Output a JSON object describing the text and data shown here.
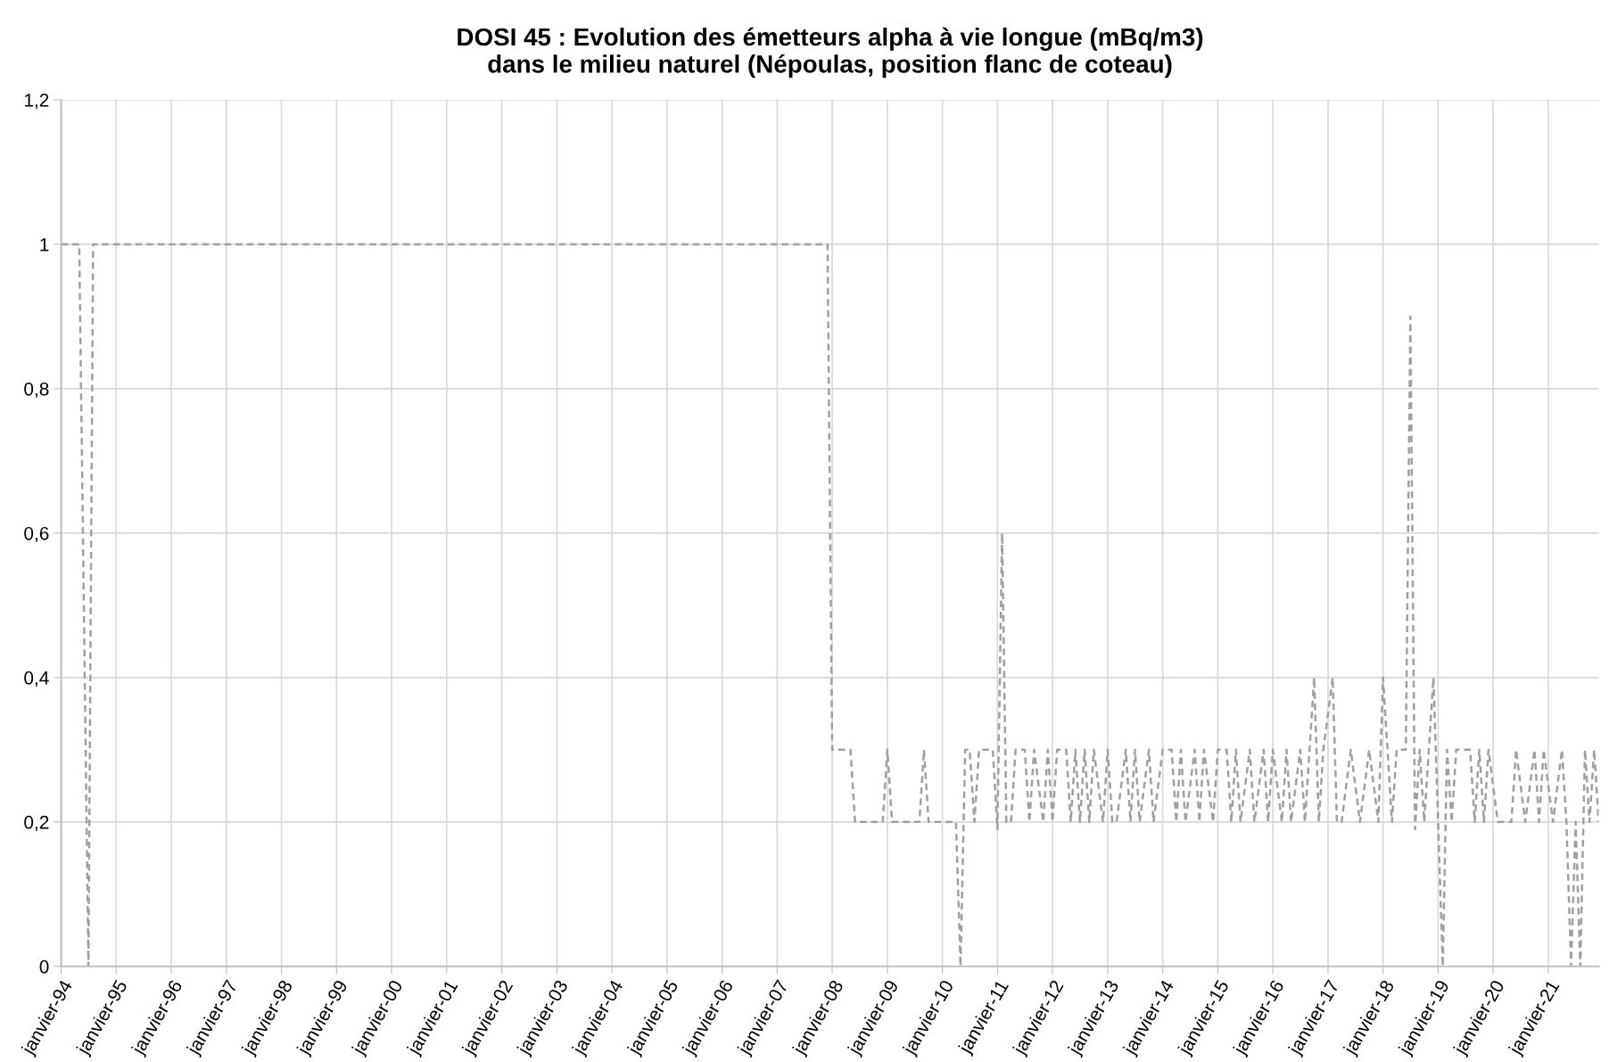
{
  "chart_data": {
    "type": "line",
    "title": "DOSI 45 : Evolution des émetteurs alpha à vie longue (mBq/m3)\ndans le milieu naturel (Népoulas, position flanc de coteau)",
    "x": [
      "1994-01",
      "1994-05",
      "1994-07",
      "1994-08",
      "2007-12",
      "2008-01",
      "2008-05",
      "2008-06",
      "2008-12",
      "2009-01",
      "2009-02",
      "2009-08",
      "2009-09",
      "2009-10",
      "2010-04",
      "2010-05",
      "2010-06",
      "2010-07",
      "2010-08",
      "2010-09",
      "2010-12",
      "2011-01",
      "2011-02",
      "2011-03",
      "2011-04",
      "2011-05",
      "2011-07",
      "2011-08",
      "2011-09",
      "2011-11",
      "2011-12",
      "2012-01",
      "2012-02",
      "2012-04",
      "2012-05",
      "2012-06",
      "2012-07",
      "2012-08",
      "2012-09",
      "2012-10",
      "2012-12",
      "2013-01",
      "2013-02",
      "2013-03",
      "2013-05",
      "2013-06",
      "2013-07",
      "2013-08",
      "2013-10",
      "2013-11",
      "2014-01",
      "2014-03",
      "2014-04",
      "2014-05",
      "2014-06",
      "2014-08",
      "2014-09",
      "2014-10",
      "2014-12",
      "2015-01",
      "2015-03",
      "2015-04",
      "2015-05",
      "2015-06",
      "2015-08",
      "2015-09",
      "2015-11",
      "2015-12",
      "2016-01",
      "2016-03",
      "2016-04",
      "2016-05",
      "2016-07",
      "2016-08",
      "2016-10",
      "2016-11",
      "2016-12",
      "2017-02",
      "2017-03",
      "2017-04",
      "2017-06",
      "2017-08",
      "2017-10",
      "2017-12",
      "2018-01",
      "2018-03",
      "2018-04",
      "2018-06",
      "2018-07",
      "2018-08",
      "2018-09",
      "2018-10",
      "2018-12",
      "2019-02",
      "2019-03",
      "2019-04",
      "2019-05",
      "2019-08",
      "2019-09",
      "2019-10",
      "2019-11",
      "2019-12",
      "2020-02",
      "2020-05",
      "2020-06",
      "2020-08",
      "2020-10",
      "2020-11",
      "2020-12",
      "2021-02",
      "2021-04",
      "2021-05",
      "2021-06",
      "2021-07",
      "2021-08",
      "2021-09",
      "2021-10",
      "2021-11",
      "2021-12"
    ],
    "series": [
      {
        "color": "#a0a0a0",
        "values": [
          1,
          1,
          0,
          1,
          1,
          0.3,
          0.3,
          0.2,
          0.2,
          0.3,
          0.2,
          0.2,
          0.3,
          0.2,
          0.2,
          0,
          0.3,
          0.3,
          0.2,
          0.3,
          0.3,
          0.19,
          0.6,
          0.2,
          0.2,
          0.3,
          0.3,
          0.2,
          0.3,
          0.2,
          0.3,
          0.2,
          0.3,
          0.3,
          0.2,
          0.3,
          0.2,
          0.3,
          0.2,
          0.3,
          0.2,
          0.3,
          0.2,
          0.2,
          0.3,
          0.2,
          0.3,
          0.2,
          0.3,
          0.2,
          0.3,
          0.3,
          0.2,
          0.3,
          0.2,
          0.3,
          0.2,
          0.3,
          0.2,
          0.3,
          0.3,
          0.2,
          0.3,
          0.2,
          0.3,
          0.2,
          0.3,
          0.2,
          0.3,
          0.2,
          0.3,
          0.2,
          0.3,
          0.2,
          0.4,
          0.2,
          0.3,
          0.4,
          0.2,
          0.2,
          0.3,
          0.2,
          0.3,
          0.2,
          0.4,
          0.2,
          0.3,
          0.3,
          0.9,
          0.19,
          0.3,
          0.2,
          0.4,
          0,
          0.3,
          0.2,
          0.3,
          0.3,
          0.2,
          0.3,
          0.2,
          0.3,
          0.2,
          0.2,
          0.3,
          0.2,
          0.3,
          0.2,
          0.3,
          0.2,
          0.3,
          0.2,
          0,
          0.2,
          0,
          0.3,
          0.2,
          0.3,
          0.2
        ]
      }
    ],
    "xlim": [
      "1994-01",
      "2021-12"
    ],
    "xticks": [
      {
        "value": "1994-01",
        "label": "janvier-94"
      },
      {
        "value": "1995-01",
        "label": "janvier-95"
      },
      {
        "value": "1996-01",
        "label": "janvier-96"
      },
      {
        "value": "1997-01",
        "label": "janvier-97"
      },
      {
        "value": "1998-01",
        "label": "janvier-98"
      },
      {
        "value": "1999-01",
        "label": "janvier-99"
      },
      {
        "value": "2000-01",
        "label": "janvier-00"
      },
      {
        "value": "2001-01",
        "label": "janvier-01"
      },
      {
        "value": "2002-01",
        "label": "janvier-02"
      },
      {
        "value": "2003-01",
        "label": "janvier-03"
      },
      {
        "value": "2004-01",
        "label": "janvier-04"
      },
      {
        "value": "2005-01",
        "label": "janvier-05"
      },
      {
        "value": "2006-01",
        "label": "janvier-06"
      },
      {
        "value": "2007-01",
        "label": "janvier-07"
      },
      {
        "value": "2008-01",
        "label": "janvier-08"
      },
      {
        "value": "2009-01",
        "label": "janvier-09"
      },
      {
        "value": "2010-01",
        "label": "janvier-10"
      },
      {
        "value": "2011-01",
        "label": "janvier-11"
      },
      {
        "value": "2012-01",
        "label": "janvier-12"
      },
      {
        "value": "2013-01",
        "label": "janvier-13"
      },
      {
        "value": "2014-01",
        "label": "janvier-14"
      },
      {
        "value": "2015-01",
        "label": "janvier-15"
      },
      {
        "value": "2016-01",
        "label": "janvier-16"
      },
      {
        "value": "2017-01",
        "label": "janvier-17"
      },
      {
        "value": "2018-01",
        "label": "janvier-18"
      },
      {
        "value": "2019-01",
        "label": "janvier-19"
      },
      {
        "value": "2020-01",
        "label": "janvier-20"
      },
      {
        "value": "2021-01",
        "label": "janvier-21"
      }
    ],
    "ylim": [
      0,
      1.2
    ],
    "yticks": [
      0,
      {
        "value": 0.2,
        "label": "0,2"
      },
      {
        "value": 0.4,
        "label": "0,4"
      },
      {
        "value": 0.6,
        "label": "0,6"
      },
      {
        "value": 0.8,
        "label": "0,8"
      },
      1,
      {
        "value": 1.2,
        "label": "1,2"
      }
    ],
    "grid": true,
    "marker": "none",
    "line_style": "dashed"
  }
}
